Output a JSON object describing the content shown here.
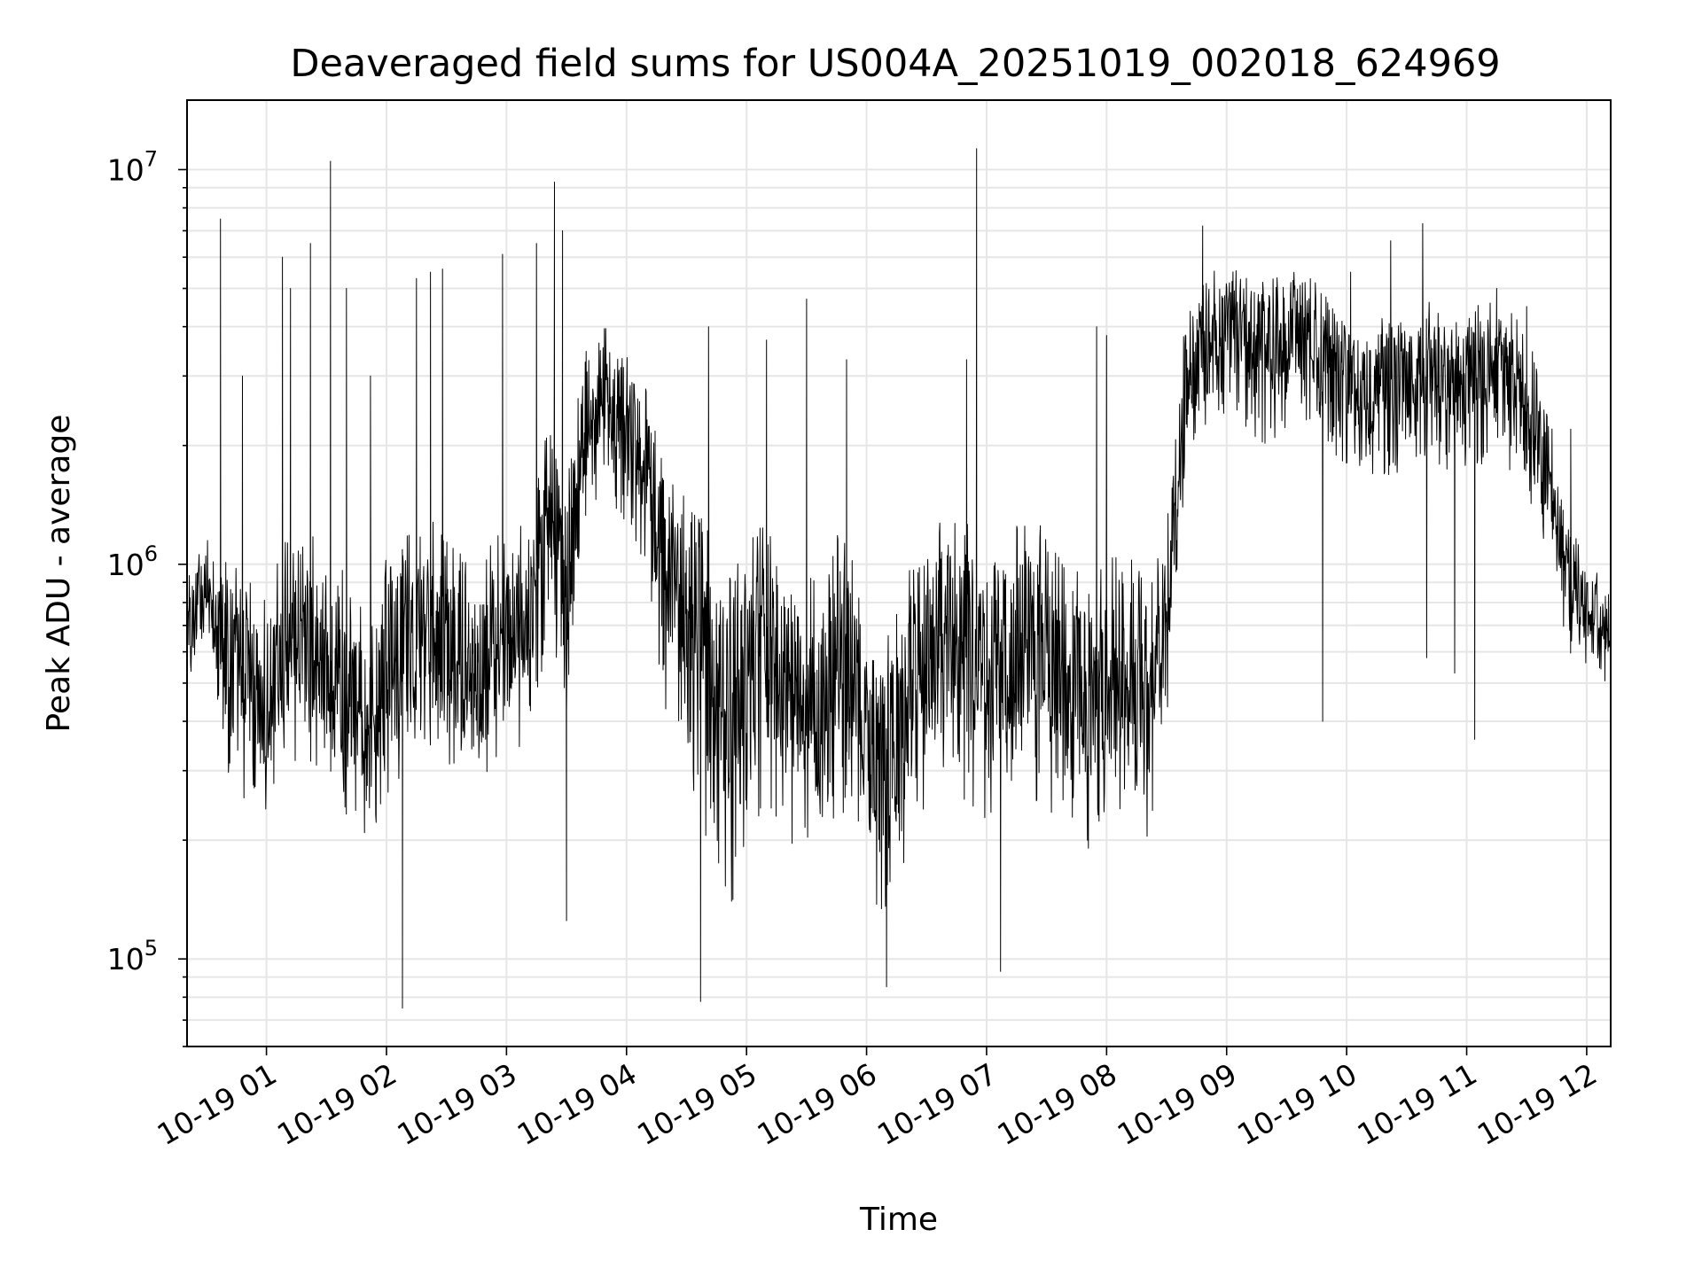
{
  "chart_data": {
    "type": "line",
    "title": "Deaveraged field sums for US004A_20251019_002018_624969",
    "xlabel": "Time",
    "ylabel": "Peak ADU - average",
    "yscale": "log",
    "ylim": [
      60000,
      15000000
    ],
    "xlim": [
      "2025-10-19 00:20:18",
      "2025-10-19 12:12:00"
    ],
    "grid": true,
    "line_color": "#000000",
    "grid_color": "#e6e6e6",
    "x_ticks": [
      "10-19 01",
      "10-19 02",
      "10-19 03",
      "10-19 04",
      "10-19 05",
      "10-19 06",
      "10-19 07",
      "10-19 08",
      "10-19 09",
      "10-19 10",
      "10-19 11",
      "10-19 12"
    ],
    "y_ticks": [
      {
        "base": "10",
        "exp": "5",
        "value": 100000
      },
      {
        "base": "10",
        "exp": "6",
        "value": 1000000
      },
      {
        "base": "10",
        "exp": "7",
        "value": 10000000
      }
    ],
    "series": [
      {
        "x": [
          "2025-10-19 00:20",
          "2025-10-19 00:30",
          "2025-10-19 00:40",
          "2025-10-19 00:50",
          "2025-10-19 01:00",
          "2025-10-19 01:10",
          "2025-10-19 01:20",
          "2025-10-19 01:30",
          "2025-10-19 01:40",
          "2025-10-19 01:50",
          "2025-10-19 02:00",
          "2025-10-19 02:10",
          "2025-10-19 02:20",
          "2025-10-19 02:30",
          "2025-10-19 02:40",
          "2025-10-19 02:50",
          "2025-10-19 03:00",
          "2025-10-19 03:10",
          "2025-10-19 03:20",
          "2025-10-19 03:30",
          "2025-10-19 03:40",
          "2025-10-19 03:50",
          "2025-10-19 04:00",
          "2025-10-19 04:10",
          "2025-10-19 04:20",
          "2025-10-19 04:30",
          "2025-10-19 04:40",
          "2025-10-19 04:50",
          "2025-10-19 05:00",
          "2025-10-19 05:10",
          "2025-10-19 05:20",
          "2025-10-19 05:30",
          "2025-10-19 05:40",
          "2025-10-19 05:50",
          "2025-10-19 06:00",
          "2025-10-19 06:10",
          "2025-10-19 06:20",
          "2025-10-19 06:30",
          "2025-10-19 06:40",
          "2025-10-19 06:50",
          "2025-10-19 07:00",
          "2025-10-19 07:10",
          "2025-10-19 07:20",
          "2025-10-19 07:30",
          "2025-10-19 07:40",
          "2025-10-19 07:50",
          "2025-10-19 08:00",
          "2025-10-19 08:10",
          "2025-10-19 08:20",
          "2025-10-19 08:30",
          "2025-10-19 08:40",
          "2025-10-19 08:50",
          "2025-10-19 09:00",
          "2025-10-19 09:10",
          "2025-10-19 09:20",
          "2025-10-19 09:30",
          "2025-10-19 09:40",
          "2025-10-19 09:50",
          "2025-10-19 10:00",
          "2025-10-19 10:10",
          "2025-10-19 10:20",
          "2025-10-19 10:30",
          "2025-10-19 10:40",
          "2025-10-19 10:50",
          "2025-10-19 11:00",
          "2025-10-19 11:10",
          "2025-10-19 11:20",
          "2025-10-19 11:30",
          "2025-10-19 11:40",
          "2025-10-19 11:50",
          "2025-10-19 12:00",
          "2025-10-19 12:10"
        ],
        "y": [
          700000,
          850000,
          600000,
          500000,
          450000,
          550000,
          650000,
          550000,
          450000,
          400000,
          500000,
          600000,
          650000,
          600000,
          500000,
          550000,
          650000,
          700000,
          1500000,
          900000,
          2500000,
          2800000,
          2300000,
          1800000,
          1000000,
          800000,
          600000,
          400000,
          550000,
          650000,
          500000,
          450000,
          550000,
          600000,
          400000,
          300000,
          450000,
          550000,
          700000,
          650000,
          550000,
          600000,
          650000,
          600000,
          500000,
          450000,
          500000,
          550000,
          500000,
          700000,
          3000000,
          3500000,
          4000000,
          3800000,
          3700000,
          3800000,
          4000000,
          3500000,
          3000000,
          2800000,
          3000000,
          2700000,
          3200000,
          3000000,
          3000000,
          3200000,
          3000000,
          2800000,
          1700000,
          1000000,
          800000,
          700000
        ],
        "lower": [
          500000,
          650000,
          300000,
          250000,
          220000,
          280000,
          320000,
          280000,
          230000,
          200000,
          240000,
          290000,
          330000,
          300000,
          250000,
          280000,
          330000,
          350000,
          600000,
          400000,
          1400000,
          1500000,
          1200000,
          900000,
          400000,
          300000,
          200000,
          120000,
          200000,
          250000,
          200000,
          180000,
          220000,
          230000,
          160000,
          110000,
          180000,
          220000,
          270000,
          250000,
          220000,
          240000,
          260000,
          240000,
          200000,
          180000,
          200000,
          220000,
          200000,
          350000,
          1800000,
          2000000,
          2200000,
          2100000,
          2000000,
          2100000,
          2300000,
          1900000,
          1700000,
          1600000,
          1700000,
          1500000,
          1800000,
          1700000,
          1700000,
          1800000,
          1700000,
          1500000,
          1100000,
          600000,
          550000,
          500000
        ],
        "upper": [
          900000,
          1200000,
          1200000,
          1000000,
          950000,
          1150000,
          1350000,
          1150000,
          950000,
          850000,
          1050000,
          1250000,
          1300000,
          1250000,
          1050000,
          1150000,
          1300000,
          1450000,
          2500000,
          1800000,
          3800000,
          4000000,
          3500000,
          2800000,
          1800000,
          1500000,
          1300000,
          900000,
          1150000,
          1300000,
          1050000,
          950000,
          1150000,
          1250000,
          850000,
          650000,
          950000,
          1150000,
          1400000,
          1350000,
          1150000,
          1250000,
          1350000,
          1250000,
          1050000,
          950000,
          1050000,
          1150000,
          1050000,
          1400000,
          4800000,
          5500000,
          5800000,
          5600000,
          5400000,
          5500000,
          5700000,
          5000000,
          4400000,
          4100000,
          4400000,
          4000000,
          4700000,
          4400000,
          4400000,
          4700000,
          4400000,
          4100000,
          2600000,
          1400000,
          1000000,
          950000
        ],
        "spikes": [
          {
            "x": "2025-10-19 00:37",
            "y": 7500000
          },
          {
            "x": "2025-10-19 00:48",
            "y": 3000000
          },
          {
            "x": "2025-10-19 01:08",
            "y": 6000000
          },
          {
            "x": "2025-10-19 01:12",
            "y": 5000000
          },
          {
            "x": "2025-10-19 01:22",
            "y": 6500000
          },
          {
            "x": "2025-10-19 01:32",
            "y": 10500000
          },
          {
            "x": "2025-10-19 01:40",
            "y": 5000000
          },
          {
            "x": "2025-10-19 01:52",
            "y": 3000000
          },
          {
            "x": "2025-10-19 02:08",
            "y": 75000
          },
          {
            "x": "2025-10-19 02:15",
            "y": 5300000
          },
          {
            "x": "2025-10-19 02:22",
            "y": 5500000
          },
          {
            "x": "2025-10-19 02:28",
            "y": 5600000
          },
          {
            "x": "2025-10-19 02:58",
            "y": 6100000
          },
          {
            "x": "2025-10-19 03:15",
            "y": 6500000
          },
          {
            "x": "2025-10-19 03:24",
            "y": 9300000
          },
          {
            "x": "2025-10-19 03:28",
            "y": 7000000
          },
          {
            "x": "2025-10-19 03:30",
            "y": 125000
          },
          {
            "x": "2025-10-19 04:41",
            "y": 4000000
          },
          {
            "x": "2025-10-19 04:37",
            "y": 78000
          },
          {
            "x": "2025-10-19 05:10",
            "y": 3700000
          },
          {
            "x": "2025-10-19 05:30",
            "y": 4700000
          },
          {
            "x": "2025-10-19 05:50",
            "y": 3300000
          },
          {
            "x": "2025-10-19 06:10",
            "y": 85000
          },
          {
            "x": "2025-10-19 06:50",
            "y": 3300000
          },
          {
            "x": "2025-10-19 06:55",
            "y": 11300000
          },
          {
            "x": "2025-10-19 07:07",
            "y": 93000
          },
          {
            "x": "2025-10-19 07:55",
            "y": 4000000
          },
          {
            "x": "2025-10-19 08:00",
            "y": 3800000
          },
          {
            "x": "2025-10-19 08:48",
            "y": 7200000
          },
          {
            "x": "2025-10-19 09:48",
            "y": 400000
          },
          {
            "x": "2025-10-19 10:02",
            "y": 5500000
          },
          {
            "x": "2025-10-19 10:22",
            "y": 6600000
          },
          {
            "x": "2025-10-19 10:38",
            "y": 7300000
          },
          {
            "x": "2025-10-19 10:40",
            "y": 580000
          },
          {
            "x": "2025-10-19 10:54",
            "y": 530000
          },
          {
            "x": "2025-10-19 11:04",
            "y": 360000
          },
          {
            "x": "2025-10-19 11:15",
            "y": 5000000
          },
          {
            "x": "2025-10-19 11:30",
            "y": 4500000
          },
          {
            "x": "2025-10-19 11:52",
            "y": 2200000
          }
        ]
      }
    ]
  }
}
